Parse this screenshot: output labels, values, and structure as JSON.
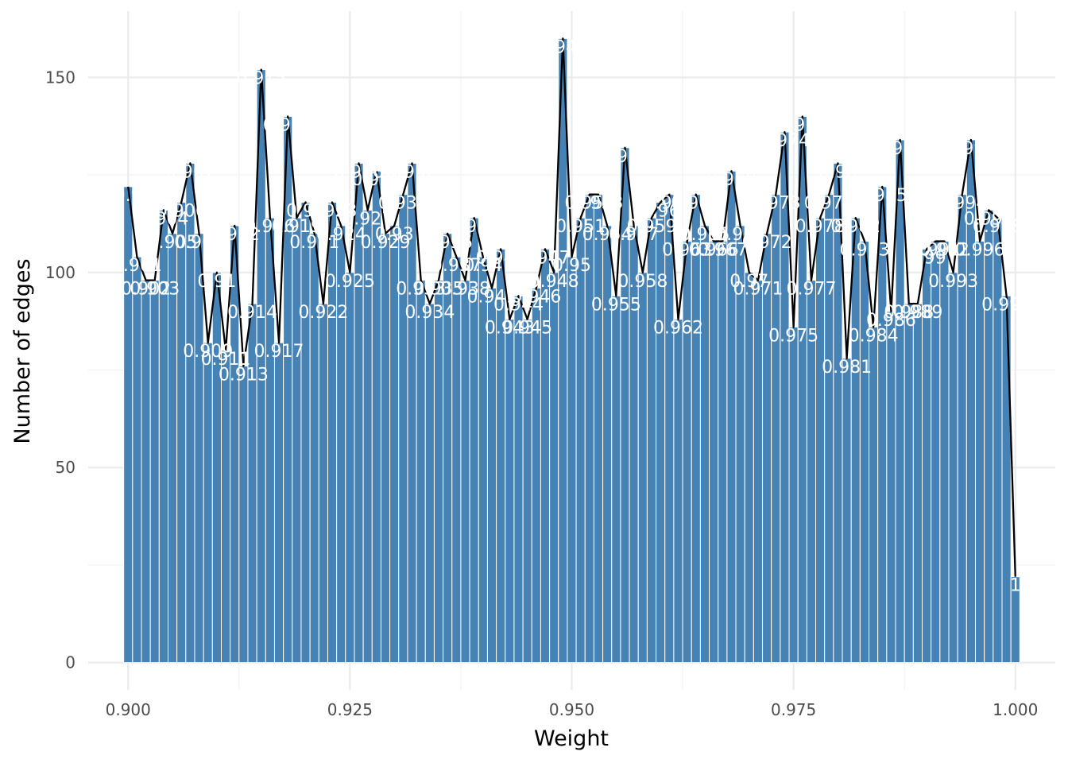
{
  "chart_data": {
    "type": "bar",
    "xlabel": "Weight",
    "ylabel": "Number of edges",
    "xlim": [
      0.8955,
      1.0045
    ],
    "ylim": [
      -7,
      167
    ],
    "x_ticks": [
      0.9,
      0.925,
      0.95,
      0.975,
      1.0
    ],
    "x_tick_labels": [
      "0.900",
      "0.925",
      "0.950",
      "0.975",
      "1.000"
    ],
    "y_ticks": [
      0,
      50,
      100,
      150
    ],
    "y_tick_labels": [
      "0",
      "50",
      "100",
      "150"
    ],
    "grid": true,
    "legend": "none",
    "bar_color": "#4682b4",
    "line_color": "#000000",
    "bin_width": 0.001,
    "x": [
      0.9,
      0.901,
      0.902,
      0.903,
      0.904,
      0.905,
      0.906,
      0.907,
      0.908,
      0.909,
      0.91,
      0.911,
      0.912,
      0.913,
      0.914,
      0.915,
      0.916,
      0.917,
      0.918,
      0.919,
      0.92,
      0.921,
      0.922,
      0.923,
      0.924,
      0.925,
      0.926,
      0.927,
      0.928,
      0.929,
      0.93,
      0.931,
      0.932,
      0.933,
      0.934,
      0.935,
      0.936,
      0.937,
      0.938,
      0.939,
      0.94,
      0.941,
      0.942,
      0.943,
      0.944,
      0.945,
      0.946,
      0.947,
      0.948,
      0.949,
      0.95,
      0.951,
      0.952,
      0.953,
      0.954,
      0.955,
      0.956,
      0.957,
      0.958,
      0.959,
      0.96,
      0.961,
      0.962,
      0.963,
      0.964,
      0.965,
      0.966,
      0.967,
      0.968,
      0.969,
      0.97,
      0.971,
      0.972,
      0.973,
      0.974,
      0.975,
      0.976,
      0.977,
      0.978,
      0.979,
      0.98,
      0.981,
      0.982,
      0.983,
      0.984,
      0.985,
      0.986,
      0.987,
      0.988,
      0.989,
      0.99,
      0.991,
      0.992,
      0.993,
      0.994,
      0.995,
      0.996,
      0.997,
      0.998,
      0.999,
      1.0
    ],
    "values": [
      122,
      104,
      98,
      98,
      116,
      110,
      118,
      128,
      110,
      82,
      100,
      80,
      112,
      76,
      92,
      152,
      114,
      82,
      140,
      114,
      118,
      110,
      92,
      118,
      112,
      100,
      128,
      116,
      126,
      110,
      112,
      120,
      128,
      98,
      92,
      98,
      110,
      104,
      98,
      114,
      104,
      96,
      106,
      88,
      94,
      88,
      96,
      106,
      100,
      160,
      104,
      114,
      120,
      120,
      112,
      94,
      132,
      112,
      100,
      114,
      118,
      120,
      88,
      108,
      120,
      112,
      108,
      108,
      126,
      112,
      100,
      98,
      110,
      120,
      136,
      86,
      140,
      98,
      114,
      120,
      128,
      78,
      114,
      108,
      86,
      122,
      90,
      134,
      92,
      92,
      106,
      108,
      108,
      100,
      120,
      134,
      108,
      116,
      114,
      94,
      22
    ],
    "bar_labels": [
      "0.9",
      "0.901",
      "0.902",
      "0.903",
      "0.904",
      "0.905",
      "0.906",
      "0.907",
      "0.908",
      "0.909",
      "0.91",
      "0.911",
      "0.912",
      "0.913",
      "0.914",
      "0.915",
      "0.916",
      "0.917",
      "0.918",
      "0.919",
      "0.92",
      "0.921",
      "0.922",
      "0.923",
      "0.924",
      "0.925",
      "0.926",
      "0.927",
      "0.928",
      "0.929",
      "0.93",
      "0.931",
      "0.932",
      "0.933",
      "0.934",
      "0.935",
      "0.936",
      "0.937",
      "0.938",
      "0.939",
      "0.94",
      "0.941",
      "0.942",
      "0.943",
      "0.944",
      "0.945",
      "0.946",
      "0.947",
      "0.948",
      "0.949",
      "0.95",
      "0.951",
      "0.952",
      "0.953",
      "0.954",
      "0.955",
      "0.956",
      "0.957",
      "0.958",
      "0.959",
      "0.96",
      "0.961",
      "0.962",
      "0.963",
      "0.964",
      "0.965",
      "0.966",
      "0.967",
      "0.968",
      "0.969",
      "0.97",
      "0.971",
      "0.972",
      "0.973",
      "0.974",
      "0.975",
      "0.976",
      "0.977",
      "0.978",
      "0.979",
      "0.98",
      "0.981",
      "0.982",
      "0.983",
      "0.984",
      "0.985",
      "0.986",
      "0.987",
      "0.988",
      "0.989",
      "0.99",
      "0.991",
      "0.992",
      "0.993",
      "0.994",
      "0.995",
      "0.996",
      "0.997",
      "0.998",
      "0.999",
      "1"
    ]
  }
}
